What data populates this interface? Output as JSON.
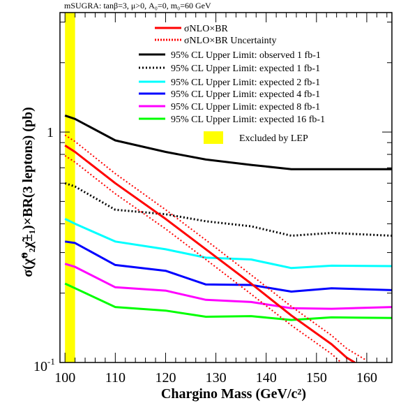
{
  "chart_data": {
    "type": "line",
    "title": "mSUGRA: tanβ=3, μ>0, A₀=0, m₀=60 GeV",
    "xlabel": "Chargino Mass (GeV/c²)",
    "ylabel": "σ(χ̃⁰₂χ̃±₁)×BR(3 leptons) (pb)",
    "xlim": [
      99,
      165
    ],
    "ylim": [
      0.1,
      3.3
    ],
    "yscale": "log",
    "x_ticks": [
      100,
      110,
      120,
      130,
      140,
      150,
      160
    ],
    "y_tick_labels": [
      {
        "value": 1,
        "label": "1"
      }
    ],
    "y_min_label": {
      "base": "10",
      "exp": "-1"
    },
    "grid": false,
    "legend_placement": "top-right",
    "excluded_band": {
      "x": [
        100,
        102
      ],
      "label": "Excluded by LEP",
      "color": "#ffff00"
    },
    "theory_x": [
      100,
      102,
      110,
      120,
      128,
      137,
      145,
      153,
      156,
      160
    ],
    "theory": {
      "label": "σNLO×BR",
      "color": "#ff0000",
      "values": [
        0.875,
        0.82,
        0.6,
        0.42,
        0.31,
        0.22,
        0.16,
        0.12,
        0.105,
        0.093
      ]
    },
    "uncertainty": {
      "label": "σNLO×BR Uncertainty",
      "color": "#ff0000",
      "upper": [
        0.97,
        0.91,
        0.66,
        0.46,
        0.34,
        0.24,
        0.175,
        0.131,
        0.115,
        0.102
      ],
      "lower": [
        0.79,
        0.74,
        0.54,
        0.38,
        0.28,
        0.198,
        0.145,
        0.109,
        0.095,
        0.084
      ]
    },
    "limits_x": [
      100,
      102,
      110,
      120,
      128,
      137,
      145,
      153,
      165
    ],
    "series": [
      {
        "name": "95% CL Upper Limit: observed 1 fb-1",
        "color": "#000000",
        "dash": "solid",
        "values": [
          1.18,
          1.14,
          0.92,
          0.82,
          0.76,
          0.72,
          0.69,
          0.69,
          0.69
        ]
      },
      {
        "name": "95% CL Upper Limit: expected 1 fb-1",
        "color": "#000000",
        "dash": "dotted",
        "values": [
          0.6,
          0.58,
          0.46,
          0.44,
          0.41,
          0.39,
          0.355,
          0.365,
          0.355
        ]
      },
      {
        "name": "95% CL Upper Limit: expected 2 fb-1",
        "color": "#00ffff",
        "dash": "solid",
        "values": [
          0.42,
          0.4,
          0.335,
          0.31,
          0.285,
          0.28,
          0.257,
          0.263,
          0.262
        ]
      },
      {
        "name": "95% CL Upper Limit: expected 4 fb-1",
        "color": "#0000ff",
        "dash": "solid",
        "values": [
          0.335,
          0.33,
          0.265,
          0.25,
          0.218,
          0.217,
          0.203,
          0.21,
          0.206
        ]
      },
      {
        "name": "95% CL Upper Limit: expected 8 fb-1",
        "color": "#ff00ff",
        "dash": "solid",
        "values": [
          0.268,
          0.26,
          0.212,
          0.205,
          0.187,
          0.183,
          0.172,
          0.171,
          0.174
        ]
      },
      {
        "name": "95% CL Upper Limit: expected 16 fb-1",
        "color": "#00ff00",
        "dash": "solid",
        "values": [
          0.22,
          0.21,
          0.174,
          0.168,
          0.158,
          0.159,
          0.153,
          0.157,
          0.156
        ]
      }
    ]
  }
}
